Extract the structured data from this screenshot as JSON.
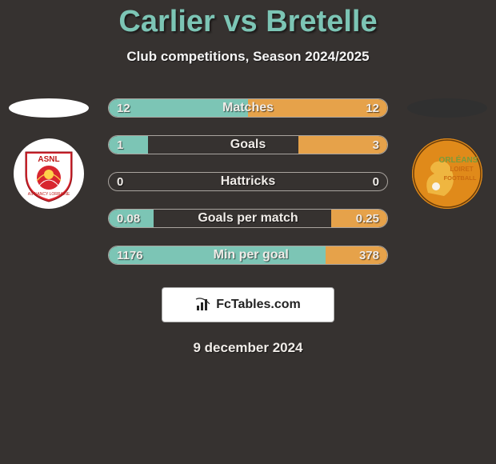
{
  "title": "Carlier vs Bretelle",
  "subtitle": "Club competitions, Season 2024/2025",
  "footer_date": "9 december 2024",
  "branding": {
    "logo_text": "FcTables.com"
  },
  "colors": {
    "background": "#363230",
    "accent_teal": "#7cc5b5",
    "accent_orange": "#e6a24a",
    "left_ellipse": "#ffffff",
    "right_ellipse": "#303030"
  },
  "team_left": {
    "name": "ASNL",
    "crest_bg": "#ffffff",
    "crest_accent": "#d8262f",
    "crest_text_color": "#c01818"
  },
  "team_right": {
    "name": "Orleans",
    "crest_bg": "#e08a1a",
    "crest_accent": "#7a9b3a",
    "crest_text_top": "ORLÉANS",
    "crest_text_mid": "LOIRET",
    "crest_text_bot": "FOOTBALL"
  },
  "stats": [
    {
      "label": "Matches",
      "left_val": "12",
      "right_val": "12",
      "left_pct": 50,
      "right_pct": 50
    },
    {
      "label": "Goals",
      "left_val": "1",
      "right_val": "3",
      "left_pct": 14,
      "right_pct": 32
    },
    {
      "label": "Hattricks",
      "left_val": "0",
      "right_val": "0",
      "left_pct": 0,
      "right_pct": 0
    },
    {
      "label": "Goals per match",
      "left_val": "0.08",
      "right_val": "0.25",
      "left_pct": 16,
      "right_pct": 20
    },
    {
      "label": "Min per goal",
      "left_val": "1176",
      "right_val": "378",
      "left_pct": 78,
      "right_pct": 22
    }
  ]
}
